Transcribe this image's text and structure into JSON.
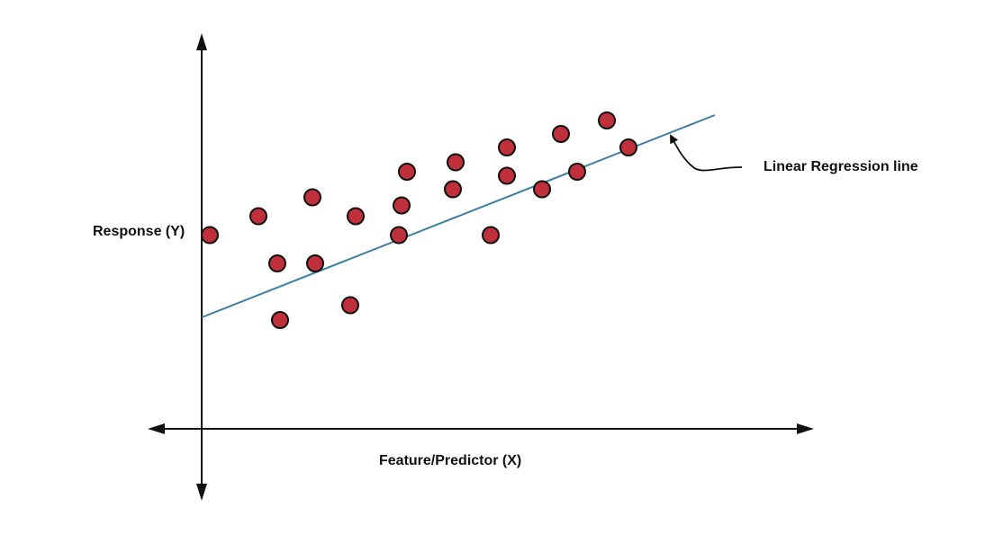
{
  "chart_data": {
    "type": "scatter",
    "xlabel": "Feature/Predictor (X)",
    "ylabel": "Response (Y)",
    "annotation": "Linear Regression line",
    "xlim": [
      0,
      100
    ],
    "ylim": [
      0,
      100
    ],
    "points": [
      {
        "x": 1.5,
        "y": 58.5
      },
      {
        "x": 10.5,
        "y": 65.5
      },
      {
        "x": 14.0,
        "y": 48.0
      },
      {
        "x": 14.5,
        "y": 27.0
      },
      {
        "x": 20.5,
        "y": 72.5
      },
      {
        "x": 21.0,
        "y": 48.0
      },
      {
        "x": 27.5,
        "y": 32.5
      },
      {
        "x": 28.5,
        "y": 65.5
      },
      {
        "x": 36.5,
        "y": 58.5
      },
      {
        "x": 37.0,
        "y": 69.5
      },
      {
        "x": 38.0,
        "y": 82.0
      },
      {
        "x": 46.5,
        "y": 75.5
      },
      {
        "x": 47.0,
        "y": 85.5
      },
      {
        "x": 53.5,
        "y": 58.5
      },
      {
        "x": 56.5,
        "y": 80.5
      },
      {
        "x": 56.5,
        "y": 91.0
      },
      {
        "x": 63.0,
        "y": 75.5
      },
      {
        "x": 66.5,
        "y": 96.0
      },
      {
        "x": 69.5,
        "y": 82.0
      },
      {
        "x": 75.0,
        "y": 101.0
      },
      {
        "x": 79.0,
        "y": 91.0
      }
    ],
    "regression_line": {
      "x": [
        0,
        95
      ],
      "y": [
        28.0,
        103.0
      ]
    },
    "colors": {
      "point_fill": "#c0303a",
      "point_stroke": "#111111",
      "line": "#3f7fa3",
      "axis": "#111111"
    }
  }
}
